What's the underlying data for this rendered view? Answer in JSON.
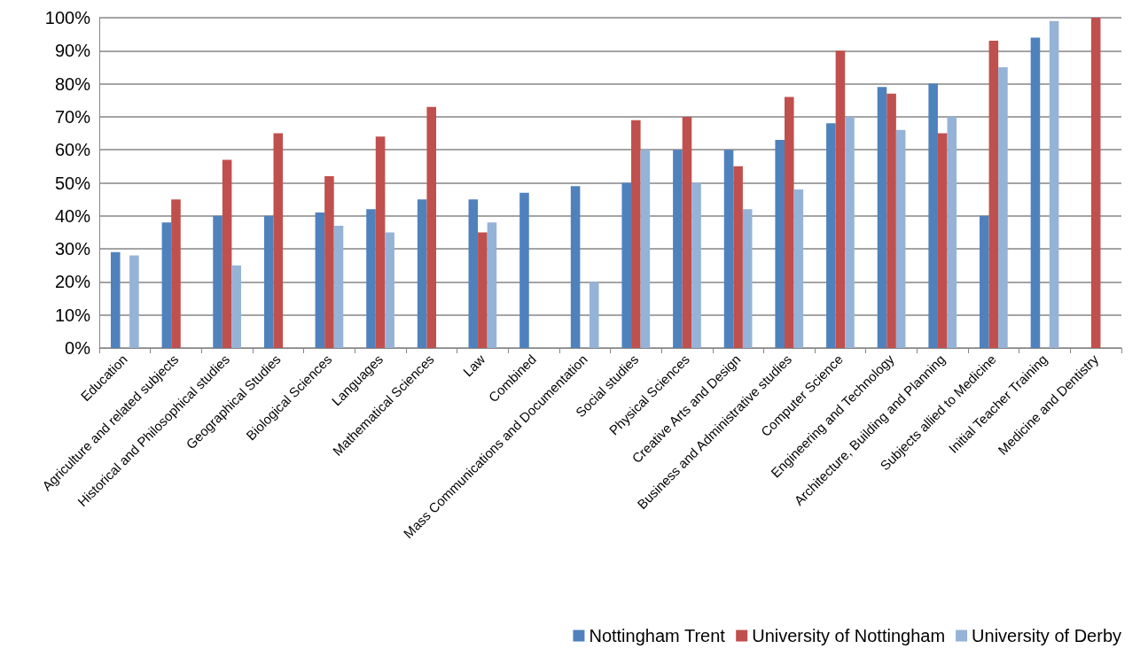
{
  "chart_data": {
    "type": "bar",
    "categories": [
      "Education",
      "Agriculture and related subjects",
      "Historical and Philosophical studies",
      "Geographical Studies",
      "Biological Sciences",
      "Languages",
      "Mathematical Sciences",
      "Law",
      "Combined",
      "Mass Communications and Documentation",
      "Social studies",
      "Physical Sciences",
      "Creative Arts and Design",
      "Business and Administrative studies",
      "Computer Science",
      "Engineering and Technology",
      "Architecture, Building and Planning",
      "Subjects allied to Medicine",
      "Initial Teacher Training",
      "Medicine and Dentistry"
    ],
    "series": [
      {
        "name": "Nottingham Trent",
        "color": "#4f81bd",
        "values": [
          29,
          38,
          40,
          40,
          41,
          42,
          45,
          45,
          47,
          49,
          50,
          60,
          60,
          63,
          68,
          79,
          80,
          40,
          94,
          null
        ]
      },
      {
        "name": "University of Nottingham",
        "color": "#c0504d",
        "values": [
          null,
          45,
          57,
          65,
          52,
          64,
          73,
          35,
          null,
          null,
          69,
          70,
          55,
          76,
          90,
          77,
          65,
          93,
          null,
          100
        ]
      },
      {
        "name": "University of Derby",
        "color": "#95b3d7",
        "values": [
          28,
          null,
          25,
          null,
          37,
          35,
          null,
          38,
          null,
          20,
          60,
          50,
          42,
          48,
          70,
          66,
          70,
          85,
          99,
          null
        ]
      }
    ],
    "ylim": [
      0,
      100
    ],
    "yticks": [
      {
        "value": 0,
        "label": "0%"
      },
      {
        "value": 10,
        "label": "10%"
      },
      {
        "value": 20,
        "label": "20%"
      },
      {
        "value": 30,
        "label": "30%"
      },
      {
        "value": 40,
        "label": "40%"
      },
      {
        "value": 50,
        "label": "50%"
      },
      {
        "value": 60,
        "label": "60%"
      },
      {
        "value": 70,
        "label": "70%"
      },
      {
        "value": 80,
        "label": "80%"
      },
      {
        "value": 90,
        "label": "90%"
      },
      {
        "value": 100,
        "label": "100%"
      }
    ],
    "grid": "y",
    "legend": "bottom right"
  }
}
